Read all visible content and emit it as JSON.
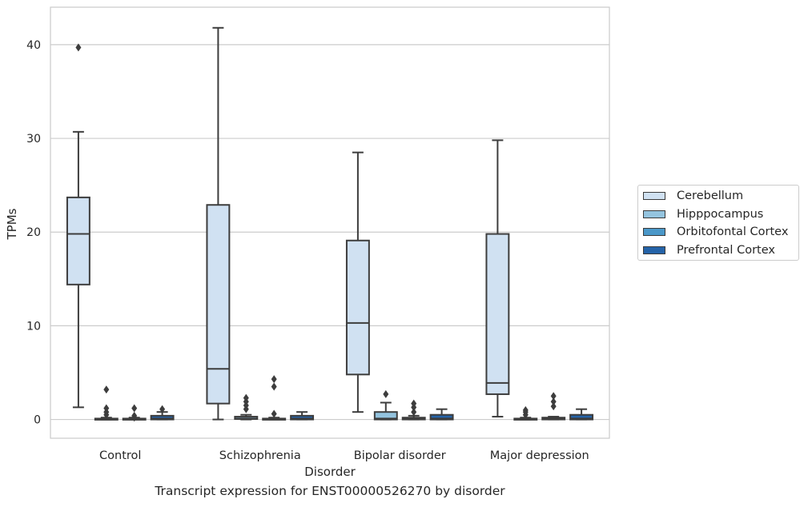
{
  "chart_data": {
    "type": "box",
    "xlabel": "Disorder",
    "ylabel": "TPMs",
    "ylim": [
      -2,
      44
    ],
    "yticks": [
      0,
      10,
      20,
      30,
      40
    ],
    "grid": "horizontal",
    "legend_placement": "right, outside",
    "categories": [
      "Control",
      "Schizophrenia",
      "Bipolar disorder",
      "Major depression"
    ],
    "series": [
      {
        "name": "Cerebellum",
        "color": "#d0e1f2",
        "boxes": [
          {
            "whisker_low": 1.3,
            "q1": 14.4,
            "median": 19.8,
            "q3": 23.7,
            "whisker_high": 30.7,
            "outliers": [
              39.7
            ]
          },
          {
            "whisker_low": 0.0,
            "q1": 1.7,
            "median": 5.4,
            "q3": 22.9,
            "whisker_high": 41.8,
            "outliers": []
          },
          {
            "whisker_low": 0.8,
            "q1": 4.8,
            "median": 10.3,
            "q3": 19.1,
            "whisker_high": 28.5,
            "outliers": []
          },
          {
            "whisker_low": 0.3,
            "q1": 2.7,
            "median": 3.9,
            "q3": 19.8,
            "whisker_high": 29.8,
            "outliers": []
          }
        ]
      },
      {
        "name": "Hipppocampus",
        "color": "#94c4df",
        "boxes": [
          {
            "whisker_low": 0.0,
            "q1": 0.0,
            "median": 0.05,
            "q3": 0.1,
            "whisker_high": 0.2,
            "outliers": [
              0.5,
              0.8,
              1.2,
              3.2
            ]
          },
          {
            "whisker_low": 0.0,
            "q1": 0.05,
            "median": 0.1,
            "q3": 0.3,
            "whisker_high": 0.5,
            "outliers": [
              1.1,
              1.5,
              1.9,
              2.3
            ]
          },
          {
            "whisker_low": 0.0,
            "q1": 0.0,
            "median": 0.1,
            "q3": 0.8,
            "whisker_high": 1.8,
            "outliers": [
              2.7
            ]
          },
          {
            "whisker_low": 0.0,
            "q1": 0.0,
            "median": 0.05,
            "q3": 0.1,
            "whisker_high": 0.2,
            "outliers": [
              0.5,
              0.8,
              1.0
            ]
          }
        ]
      },
      {
        "name": "Orbitofontal Cortex",
        "color": "#4a98c9",
        "boxes": [
          {
            "whisker_low": 0.0,
            "q1": 0.0,
            "median": 0.05,
            "q3": 0.1,
            "whisker_high": 0.2,
            "outliers": [
              0.2,
              0.4,
              1.2
            ]
          },
          {
            "whisker_low": 0.0,
            "q1": 0.0,
            "median": 0.05,
            "q3": 0.1,
            "whisker_high": 0.2,
            "outliers": [
              0.6,
              3.5,
              4.3
            ]
          },
          {
            "whisker_low": 0.0,
            "q1": 0.0,
            "median": 0.05,
            "q3": 0.2,
            "whisker_high": 0.4,
            "outliers": [
              0.8,
              1.3,
              1.7
            ]
          },
          {
            "whisker_low": 0.0,
            "q1": 0.0,
            "median": 0.05,
            "q3": 0.2,
            "whisker_high": 0.3,
            "outliers": [
              1.4,
              1.9,
              2.5
            ]
          }
        ]
      },
      {
        "name": "Prefrontal Cortex",
        "color": "#2563a8",
        "boxes": [
          {
            "whisker_low": 0.0,
            "q1": 0.0,
            "median": 0.1,
            "q3": 0.4,
            "whisker_high": 0.8,
            "outliers": [
              1.1
            ]
          },
          {
            "whisker_low": 0.0,
            "q1": 0.0,
            "median": 0.1,
            "q3": 0.4,
            "whisker_high": 0.8,
            "outliers": []
          },
          {
            "whisker_low": 0.0,
            "q1": 0.0,
            "median": 0.1,
            "q3": 0.5,
            "whisker_high": 1.1,
            "outliers": []
          },
          {
            "whisker_low": 0.0,
            "q1": 0.0,
            "median": 0.1,
            "q3": 0.5,
            "whisker_high": 1.1,
            "outliers": []
          }
        ]
      }
    ]
  },
  "caption": "Transcript expression for ENST00000526270 by disorder"
}
